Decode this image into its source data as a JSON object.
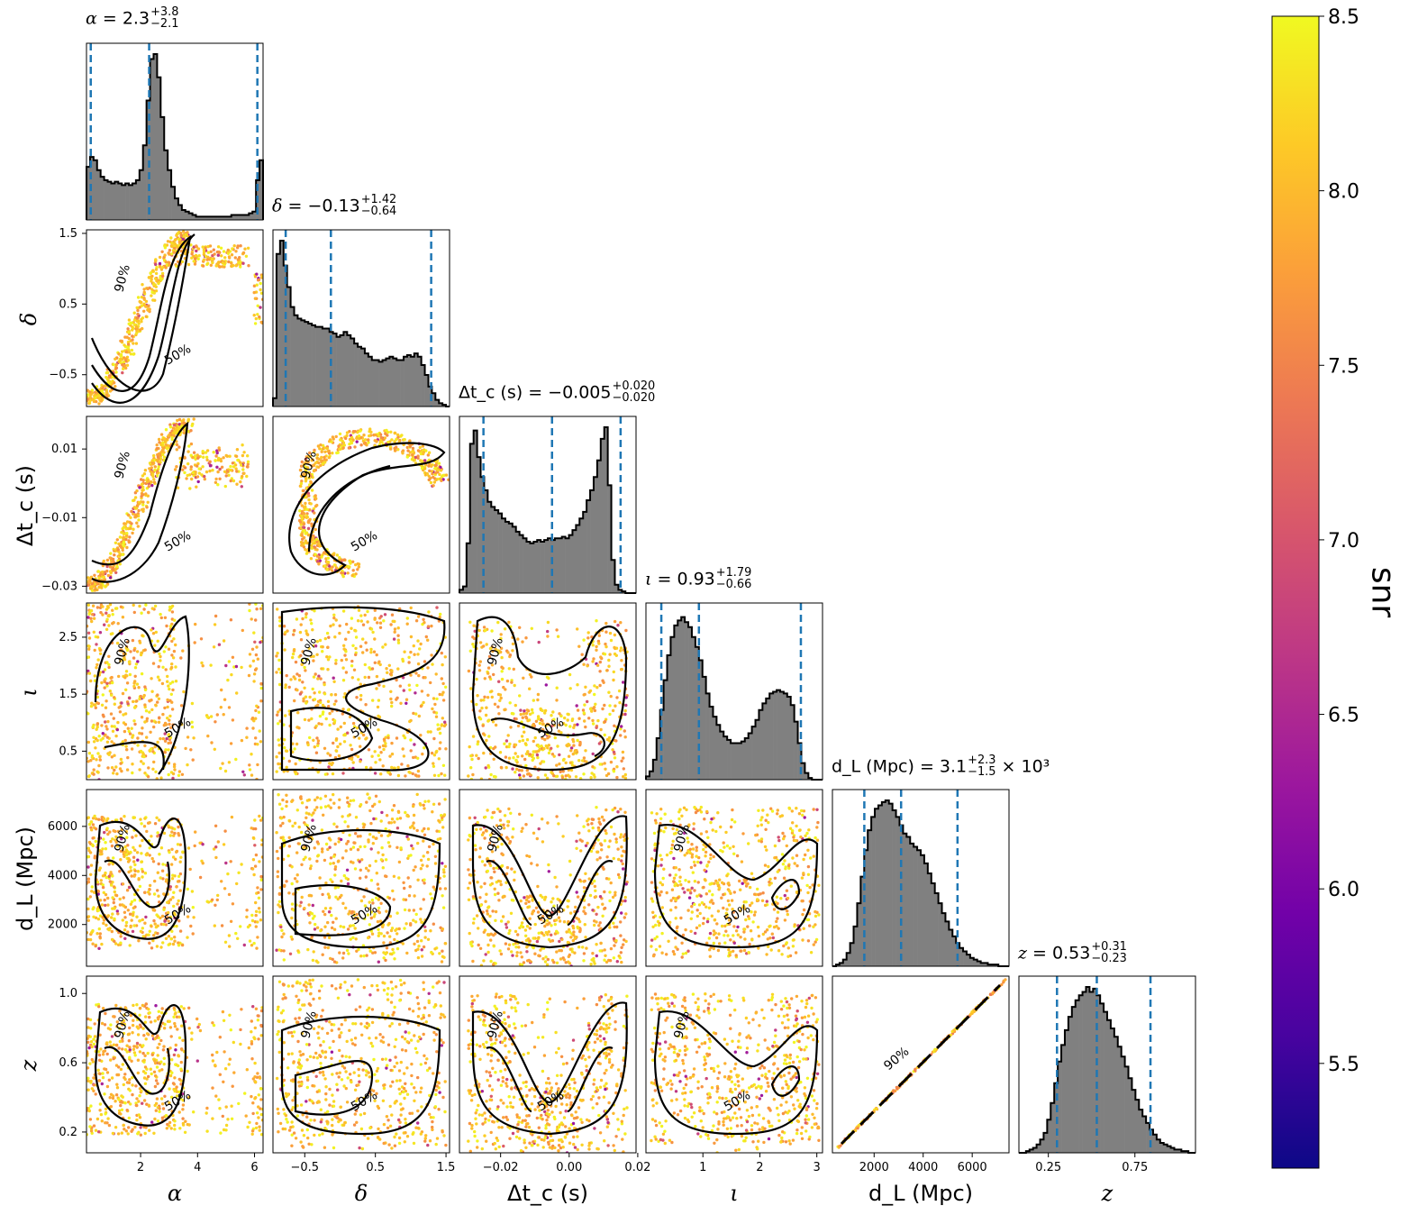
{
  "chart_data": {
    "type": "corner",
    "parameters": [
      {
        "key": "alpha",
        "label": "α",
        "range": [
          0.1,
          6.3
        ],
        "ticks": [
          2,
          4,
          6
        ],
        "tick_labels": [
          "2",
          "4",
          "6"
        ],
        "title": {
          "name": "α",
          "median": "2.3",
          "plus": "+3.8",
          "minus": "−2.1",
          "suffix": ""
        },
        "quantiles": [
          0.25,
          2.3,
          6.1
        ]
      },
      {
        "key": "delta",
        "label": "δ",
        "range": [
          -0.95,
          1.55
        ],
        "ticks": [
          -0.5,
          0.5,
          1.5
        ],
        "tick_labels": [
          "−0.5",
          "0.5",
          "1.5"
        ],
        "title": {
          "name": "δ",
          "median": "−0.13",
          "plus": "+1.42",
          "minus": "−0.64",
          "suffix": ""
        },
        "quantiles": [
          -0.77,
          -0.13,
          1.29
        ]
      },
      {
        "key": "dtc",
        "label": "Δt_c (s)",
        "range": [
          -0.032,
          0.0195
        ],
        "ticks": [
          -0.03,
          -0.01,
          0.01
        ],
        "tick_labels": [
          "−0.03",
          "−0.01",
          "0.01"
        ],
        "xticks": [
          -0.02,
          0.0,
          0.02
        ],
        "xtick_labels": [
          "−0.02",
          "0.00",
          "0.02"
        ],
        "title": {
          "name": "Δt_c (s)",
          "median": "−0.005",
          "plus": "+0.020",
          "minus": "−0.020",
          "suffix": ""
        },
        "quantiles": [
          -0.025,
          -0.005,
          0.015
        ]
      },
      {
        "key": "iota",
        "label": "ι",
        "range": [
          0.0,
          3.1
        ],
        "ticks": [
          0.5,
          1.5,
          2.5
        ],
        "tick_labels": [
          "0.5",
          "1.5",
          "2.5"
        ],
        "xticks": [
          1,
          2,
          3
        ],
        "xtick_labels": [
          "1",
          "2",
          "3"
        ],
        "title": {
          "name": "ι",
          "median": "0.93",
          "plus": "+1.79",
          "minus": "−0.66",
          "suffix": ""
        },
        "quantiles": [
          0.27,
          0.93,
          2.72
        ]
      },
      {
        "key": "dL",
        "label": "d_L (Mpc)",
        "range": [
          300,
          7500
        ],
        "ticks": [
          2000,
          4000,
          6000
        ],
        "tick_labels": [
          "2000",
          "4000",
          "6000"
        ],
        "title": {
          "name": "d_L (Mpc)",
          "median": "3.1",
          "plus": "+2.3",
          "minus": "−1.5",
          "suffix": "× 10³"
        },
        "quantiles": [
          1600,
          3100,
          5400
        ]
      },
      {
        "key": "z",
        "label": "z",
        "range": [
          0.08,
          1.1
        ],
        "ticks": [
          0.2,
          0.6,
          1.0
        ],
        "tick_labels": [
          "0.2",
          "0.6",
          "1.0"
        ],
        "xticks": [
          0.25,
          0.75
        ],
        "xtick_labels": [
          "0.25",
          "0.75"
        ],
        "title": {
          "name": "z",
          "median": "0.53",
          "plus": "+0.31",
          "minus": "−0.23",
          "suffix": ""
        },
        "quantiles": [
          0.3,
          0.53,
          0.84
        ]
      }
    ],
    "histograms": {
      "alpha": [
        0.32,
        0.38,
        0.36,
        0.3,
        0.26,
        0.24,
        0.23,
        0.22,
        0.23,
        0.22,
        0.21,
        0.22,
        0.21,
        0.22,
        0.24,
        0.3,
        0.45,
        0.72,
        0.97,
        1.0,
        0.86,
        0.62,
        0.42,
        0.3,
        0.2,
        0.13,
        0.09,
        0.06,
        0.05,
        0.04,
        0.03,
        0.02,
        0.02,
        0.02,
        0.02,
        0.02,
        0.02,
        0.02,
        0.02,
        0.02,
        0.02,
        0.03,
        0.03,
        0.03,
        0.03,
        0.03,
        0.04,
        0.05,
        0.24,
        0.36
      ],
      "delta": [
        0.05,
        0.92,
        1.0,
        0.85,
        0.72,
        0.6,
        0.55,
        0.53,
        0.52,
        0.51,
        0.5,
        0.49,
        0.48,
        0.48,
        0.47,
        0.47,
        0.45,
        0.44,
        0.42,
        0.43,
        0.45,
        0.43,
        0.41,
        0.38,
        0.36,
        0.35,
        0.32,
        0.3,
        0.28,
        0.28,
        0.27,
        0.28,
        0.29,
        0.3,
        0.29,
        0.28,
        0.28,
        0.3,
        0.31,
        0.3,
        0.32,
        0.3,
        0.25,
        0.19,
        0.12,
        0.08,
        0.04,
        0.02,
        0.01,
        0.0
      ],
      "dtc": [
        0.02,
        0.04,
        0.3,
        0.9,
        0.98,
        0.82,
        0.7,
        0.62,
        0.55,
        0.52,
        0.5,
        0.48,
        0.45,
        0.43,
        0.42,
        0.4,
        0.37,
        0.35,
        0.33,
        0.31,
        0.3,
        0.31,
        0.32,
        0.31,
        0.32,
        0.33,
        0.32,
        0.33,
        0.33,
        0.34,
        0.33,
        0.35,
        0.38,
        0.41,
        0.45,
        0.49,
        0.56,
        0.62,
        0.7,
        0.8,
        0.93,
        1.0,
        0.65,
        0.2,
        0.05,
        0.02,
        0.01,
        0.0,
        0.0,
        0.0
      ],
      "iota": [
        0.02,
        0.05,
        0.12,
        0.25,
        0.42,
        0.6,
        0.75,
        0.86,
        0.93,
        0.96,
        0.98,
        0.95,
        0.92,
        0.86,
        0.8,
        0.72,
        0.62,
        0.52,
        0.44,
        0.38,
        0.33,
        0.29,
        0.26,
        0.24,
        0.22,
        0.22,
        0.22,
        0.23,
        0.25,
        0.28,
        0.32,
        0.36,
        0.42,
        0.46,
        0.49,
        0.52,
        0.53,
        0.54,
        0.53,
        0.52,
        0.5,
        0.45,
        0.35,
        0.22,
        0.1,
        0.04,
        0.01,
        0.0,
        0.0,
        0.0
      ],
      "dL": [
        0.0,
        0.01,
        0.02,
        0.04,
        0.08,
        0.14,
        0.24,
        0.38,
        0.54,
        0.7,
        0.82,
        0.9,
        0.95,
        0.97,
        0.99,
        1.0,
        0.98,
        0.94,
        0.9,
        0.85,
        0.8,
        0.78,
        0.74,
        0.72,
        0.7,
        0.67,
        0.62,
        0.56,
        0.5,
        0.44,
        0.38,
        0.32,
        0.27,
        0.22,
        0.18,
        0.14,
        0.11,
        0.09,
        0.07,
        0.05,
        0.04,
        0.03,
        0.02,
        0.02,
        0.01,
        0.01,
        0.01,
        0.0,
        0.0,
        0.0
      ],
      "z": [
        0.0,
        0.0,
        0.01,
        0.02,
        0.03,
        0.05,
        0.08,
        0.12,
        0.2,
        0.3,
        0.42,
        0.55,
        0.65,
        0.74,
        0.82,
        0.88,
        0.92,
        0.95,
        0.97,
        1.0,
        0.97,
        0.99,
        0.95,
        0.9,
        0.85,
        0.8,
        0.75,
        0.7,
        0.64,
        0.58,
        0.52,
        0.45,
        0.38,
        0.32,
        0.26,
        0.22,
        0.18,
        0.14,
        0.11,
        0.08,
        0.06,
        0.05,
        0.04,
        0.03,
        0.02,
        0.02,
        0.01,
        0.01,
        0.0,
        0.0
      ]
    },
    "colorbar": {
      "label": "snr",
      "min": 5.2,
      "max": 8.5,
      "ticks": [
        5.5,
        6.0,
        6.5,
        7.0,
        7.5,
        8.0,
        8.5
      ],
      "tick_labels": [
        "5.5",
        "6.0",
        "6.5",
        "7.0",
        "7.5",
        "8.0",
        "8.5"
      ],
      "colormap": "plasma"
    },
    "contour_levels": [
      "50%",
      "90%"
    ],
    "histogram_color": "#808080",
    "quantile_line_color": "#1f77b4"
  }
}
